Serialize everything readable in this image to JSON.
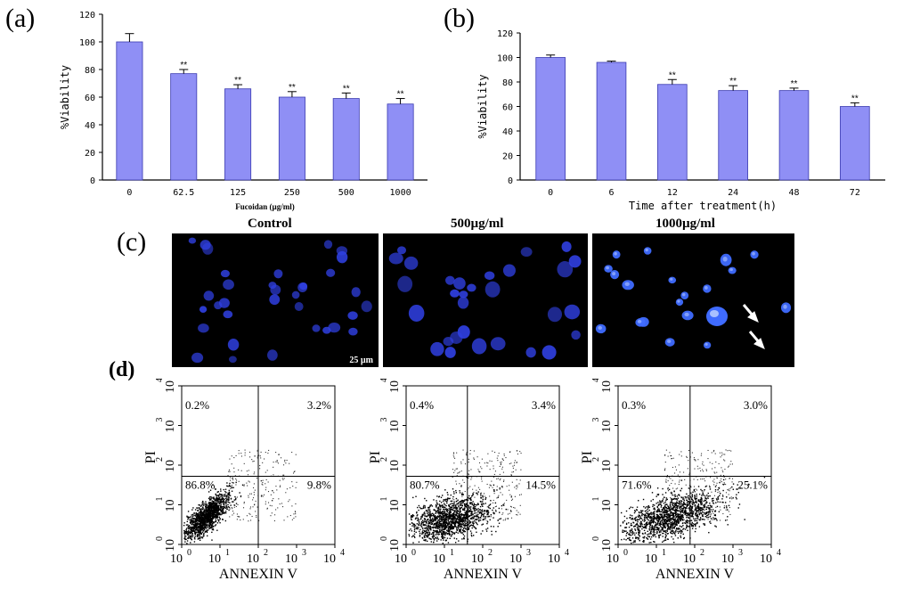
{
  "labels": {
    "a": "(a)",
    "b": "(b)",
    "c": "(c)",
    "d": "(d)"
  },
  "colors": {
    "bar": "#8f8ff5",
    "bar_edge": "#3a3ab0",
    "nuclei": "#2f3fe0"
  },
  "chart_data": [
    {
      "type": "bar",
      "panel": "a",
      "categories": [
        "0",
        "62.5",
        "125",
        "250",
        "500",
        "1000"
      ],
      "values": [
        100,
        77,
        66,
        60,
        59,
        55
      ],
      "errors": [
        6,
        3,
        3,
        4,
        4,
        4
      ],
      "significance": [
        "",
        "**",
        "**",
        "**",
        "**",
        "**"
      ],
      "ylabel": "%Viability",
      "xlabel": "Fucoidan (µg/ml)",
      "ylim": [
        0,
        120
      ],
      "yticks": [
        "0",
        "20",
        "40",
        "60",
        "80",
        "100",
        "120"
      ]
    },
    {
      "type": "bar",
      "panel": "b",
      "categories": [
        "0",
        "6",
        "12",
        "24",
        "48",
        "72"
      ],
      "values": [
        100,
        96,
        78,
        73,
        73,
        60
      ],
      "errors": [
        2,
        1,
        4,
        4,
        2,
        3
      ],
      "significance": [
        "",
        "",
        "**",
        "**",
        "**",
        "**"
      ],
      "ylabel": "%Viability",
      "xlabel": "Time after treatment(h)",
      "ylim": [
        0,
        120
      ],
      "yticks": [
        "0",
        "20",
        "40",
        "60",
        "80",
        "100",
        "120"
      ]
    }
  ],
  "micrographs": [
    {
      "title": "Control",
      "scale_bar": "25 µm"
    },
    {
      "title": "500µg/ml"
    },
    {
      "title": "1000µg/ml"
    }
  ],
  "flow": [
    {
      "ul": "0.2%",
      "ur": "3.2%",
      "ll": "86.8%",
      "lr": "9.8%",
      "xaxis": "ANNEXIN V",
      "yaxis": "PI"
    },
    {
      "ul": "0.4%",
      "ur": "3.4%",
      "ll": "80.7%",
      "lr": "14.5%",
      "xaxis": "ANNEXIN V",
      "yaxis": "PI"
    },
    {
      "ul": "0.3%",
      "ur": "3.0%",
      "ll": "71.6%",
      "lr": "25.1%",
      "xaxis": "ANNEXIN V",
      "yaxis": "PI"
    }
  ],
  "flow_ticks": {
    "base": "10",
    "exponents": [
      "0",
      "1",
      "2",
      "3",
      "4"
    ]
  }
}
